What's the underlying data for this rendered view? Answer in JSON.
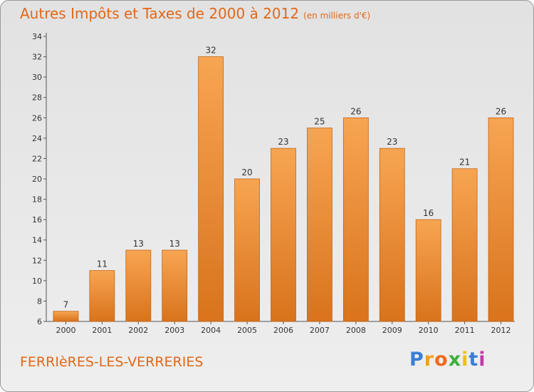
{
  "header": {
    "title": "Autres Impôts et Taxes de 2000 à 2012",
    "units": "(en milliers d'€)"
  },
  "footer": {
    "commune": "FERRIèRES-LES-VERRERIES",
    "brand_letters": [
      "P",
      "r",
      "o",
      "x",
      "i",
      "t",
      "i"
    ],
    "brand_colors": [
      "#3a7fd6",
      "#f0a020",
      "#f26a1a",
      "#3fae3b",
      "#f0c010",
      "#3a7fd6",
      "#c23aa8"
    ]
  },
  "colors": {
    "bar_light": "#f7a552",
    "bar_dark": "#d9731c",
    "bar_edge": "#c46514",
    "text_accent": "#e06818",
    "axis": "#555555"
  },
  "chart_data": {
    "type": "bar",
    "categories": [
      "2000",
      "2001",
      "2002",
      "2003",
      "2004",
      "2005",
      "2006",
      "2007",
      "2008",
      "2009",
      "2010",
      "2011",
      "2012"
    ],
    "values": [
      7,
      11,
      13,
      13,
      32,
      20,
      23,
      25,
      26,
      23,
      16,
      21,
      26
    ],
    "ylim": [
      6,
      34
    ],
    "yticks": [
      6,
      8,
      10,
      12,
      14,
      16,
      18,
      20,
      22,
      24,
      26,
      28,
      30,
      32,
      34
    ],
    "grid": false,
    "data_labels": true
  }
}
